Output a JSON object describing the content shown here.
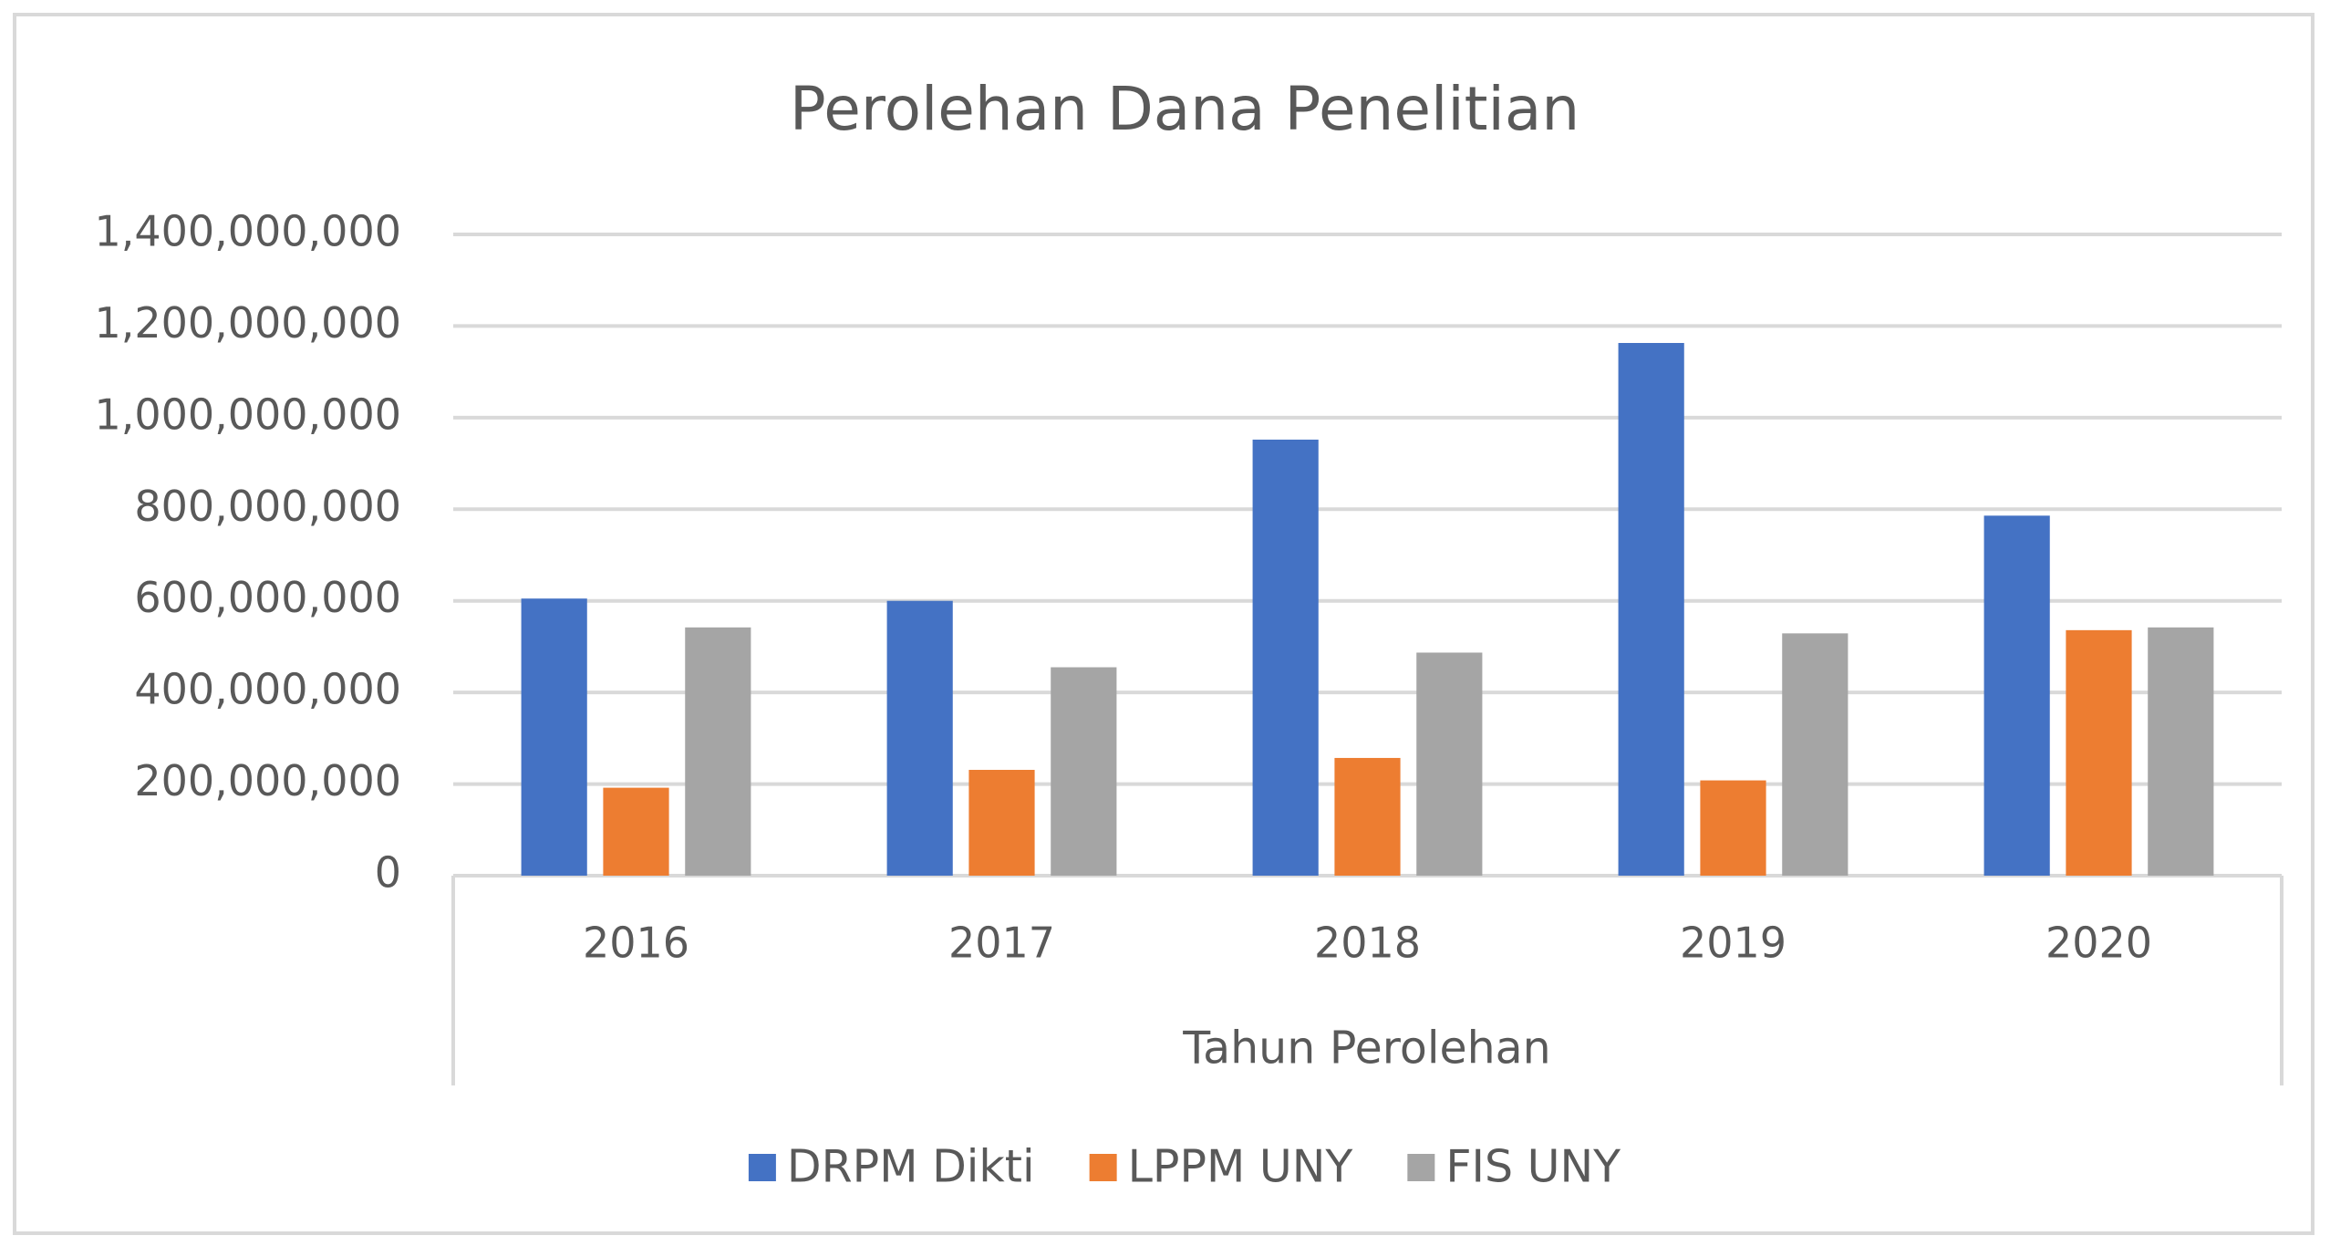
{
  "chart_data": {
    "type": "bar",
    "title": "Perolehan Dana Penelitian",
    "x_label": "Tahun Perolehan",
    "categories": [
      "2016",
      "2017",
      "2018",
      "2019",
      "2020"
    ],
    "series": [
      {
        "name": "DRPM Dikti",
        "color": "#4472c4",
        "values": [
          605000000,
          600000000,
          952000000,
          1163000000,
          786000000
        ]
      },
      {
        "name": "LPPM UNY",
        "color": "#ed7d31",
        "values": [
          192000000,
          231000000,
          257000000,
          208000000,
          536000000
        ]
      },
      {
        "name": "FIS UNY",
        "color": "#a5a5a5",
        "values": [
          542000000,
          455000000,
          487000000,
          529000000,
          542000000
        ]
      }
    ],
    "ylim": [
      0,
      1400000000
    ],
    "yticks": [
      0,
      {
        "value": 200000000,
        "label": "200,000,000"
      },
      {
        "value": 400000000,
        "label": "400,000,000"
      },
      {
        "value": 600000000,
        "label": "600,000,000"
      },
      {
        "value": 800000000,
        "label": "800,000,000"
      },
      {
        "value": 1000000000,
        "label": "1,000,000,000"
      },
      {
        "value": 1200000000,
        "label": "1,200,000,000"
      },
      {
        "value": 1400000000,
        "label": "1,400,000,000"
      }
    ],
    "grid": true,
    "legend": "bottom"
  }
}
